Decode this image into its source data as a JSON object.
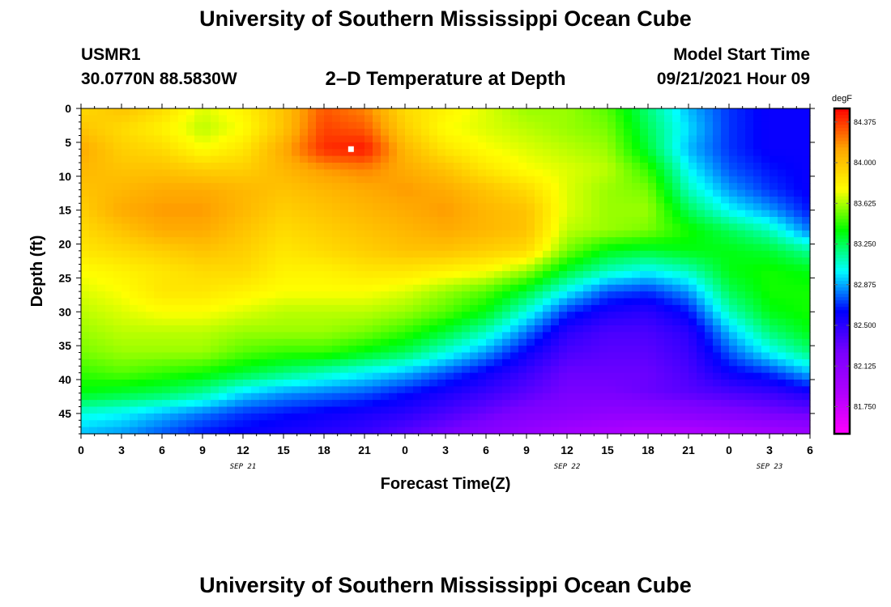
{
  "header": {
    "title": "University of Southern Mississippi Ocean Cube",
    "station": "USMR1",
    "coords": "30.0770N  88.5830W",
    "plot_title": "2–D Temperature at Depth",
    "model_start_label": "Model Start Time",
    "model_start_value": "09/21/2021 Hour 09"
  },
  "footer": {
    "title": "University of Southern Mississippi Ocean Cube"
  },
  "chart_data": {
    "type": "heatmap",
    "xlabel": "Forecast Time(Z)",
    "ylabel": "Depth (ft)",
    "x_ticks": [
      "0",
      "3",
      "6",
      "9",
      "12",
      "15",
      "18",
      "21",
      "0",
      "3",
      "6",
      "9",
      "12",
      "15",
      "18",
      "21",
      "0",
      "3",
      "6"
    ],
    "x_range_hours": [
      0,
      54
    ],
    "date_labels": [
      {
        "label": "SEP 21",
        "hour": 12
      },
      {
        "label": "SEP 22",
        "hour": 36
      },
      {
        "label": "SEP 23",
        "hour": 51
      }
    ],
    "y_ticks": [
      0,
      5,
      10,
      15,
      20,
      25,
      30,
      35,
      40,
      45
    ],
    "ylim": [
      0,
      48
    ],
    "y_reversed": true,
    "colorbar": {
      "unit": "degF",
      "min": 81.5,
      "max": 84.5,
      "labels": [
        "84.375",
        "84.000",
        "83.625",
        "83.250",
        "82.875",
        "82.500",
        "82.125",
        "81.750"
      ],
      "colors": [
        "#ff00ff",
        "#b000ff",
        "#7a00ff",
        "#0000ff",
        "#00ffff",
        "#00ff00",
        "#ffff00",
        "#ffa500",
        "#ff0000"
      ]
    },
    "marker": {
      "hour": 20,
      "depth": 6,
      "color": "#ffffff"
    },
    "grid": false,
    "values_hours": [
      0,
      3,
      6,
      9,
      12,
      15,
      18,
      21,
      24,
      27,
      30,
      33,
      36,
      39,
      42,
      45,
      48,
      51,
      54
    ],
    "values_depths": [
      0,
      3,
      6,
      9,
      12,
      15,
      18,
      21,
      24,
      27,
      30,
      33,
      36,
      39,
      42,
      45,
      48
    ],
    "values": [
      [
        83.9,
        84.0,
        83.9,
        83.7,
        83.8,
        84.0,
        84.3,
        84.2,
        83.9,
        83.8,
        83.7,
        83.6,
        83.6,
        83.5,
        83.2,
        82.9,
        82.7,
        82.6,
        82.6
      ],
      [
        84.0,
        83.9,
        83.8,
        83.65,
        83.75,
        84.0,
        84.35,
        84.3,
        83.95,
        83.75,
        83.7,
        83.65,
        83.6,
        83.55,
        83.25,
        82.95,
        82.7,
        82.6,
        82.6
      ],
      [
        84.1,
        83.95,
        83.9,
        83.75,
        83.85,
        84.1,
        84.4,
        84.45,
        84.05,
        83.85,
        83.75,
        83.7,
        83.65,
        83.6,
        83.3,
        82.9,
        82.7,
        82.6,
        82.6
      ],
      [
        84.05,
        84.0,
        84.0,
        83.95,
        83.95,
        84.05,
        84.15,
        84.2,
        84.1,
        84.0,
        83.85,
        83.75,
        83.7,
        83.65,
        83.45,
        83.0,
        82.75,
        82.65,
        82.6
      ],
      [
        84.0,
        84.05,
        84.1,
        84.1,
        84.05,
        84.0,
        84.05,
        84.1,
        84.15,
        84.1,
        84.0,
        83.9,
        83.7,
        83.6,
        83.55,
        83.1,
        82.85,
        82.7,
        82.6
      ],
      [
        83.95,
        84.1,
        84.15,
        84.15,
        84.05,
        83.95,
        84.0,
        84.05,
        84.1,
        84.15,
        84.05,
        84.0,
        83.7,
        83.6,
        83.6,
        83.25,
        83.0,
        82.85,
        82.65
      ],
      [
        83.9,
        84.0,
        84.1,
        84.1,
        84.0,
        83.9,
        83.95,
        84.0,
        84.05,
        84.1,
        84.05,
        84.0,
        83.65,
        83.6,
        83.55,
        83.4,
        83.25,
        83.1,
        82.8
      ],
      [
        83.85,
        83.9,
        83.95,
        84.0,
        83.95,
        83.85,
        83.9,
        83.95,
        84.0,
        84.0,
        83.95,
        83.9,
        83.55,
        83.35,
        83.3,
        83.35,
        83.35,
        83.3,
        83.15
      ],
      [
        83.75,
        83.8,
        83.85,
        83.9,
        83.9,
        83.8,
        83.8,
        83.85,
        83.85,
        83.8,
        83.75,
        83.6,
        83.3,
        83.1,
        83.0,
        83.1,
        83.35,
        83.4,
        83.35
      ],
      [
        83.7,
        83.75,
        83.85,
        83.85,
        83.8,
        83.75,
        83.75,
        83.75,
        83.7,
        83.6,
        83.5,
        83.3,
        83.0,
        82.75,
        82.7,
        82.85,
        83.25,
        83.4,
        83.4
      ],
      [
        83.65,
        83.7,
        83.75,
        83.75,
        83.7,
        83.65,
        83.65,
        83.65,
        83.6,
        83.5,
        83.35,
        83.05,
        82.7,
        82.55,
        82.5,
        82.65,
        83.1,
        83.35,
        83.4
      ],
      [
        83.6,
        83.65,
        83.65,
        83.65,
        83.6,
        83.6,
        83.6,
        83.55,
        83.45,
        83.3,
        83.1,
        82.8,
        82.5,
        82.4,
        82.4,
        82.5,
        82.9,
        83.2,
        83.35
      ],
      [
        83.55,
        83.6,
        83.6,
        83.6,
        83.5,
        83.45,
        83.45,
        83.35,
        83.25,
        83.05,
        82.85,
        82.6,
        82.4,
        82.35,
        82.35,
        82.45,
        82.75,
        83.0,
        83.2
      ],
      [
        83.45,
        83.5,
        83.45,
        83.4,
        83.3,
        83.2,
        83.1,
        83.0,
        82.9,
        82.75,
        82.6,
        82.45,
        82.3,
        82.3,
        82.3,
        82.4,
        82.6,
        82.7,
        82.9
      ],
      [
        83.35,
        83.3,
        83.25,
        83.15,
        82.95,
        82.85,
        82.8,
        82.75,
        82.65,
        82.55,
        82.45,
        82.35,
        82.25,
        82.25,
        82.3,
        82.35,
        82.4,
        82.45,
        82.55
      ],
      [
        83.05,
        83.0,
        82.9,
        82.8,
        82.7,
        82.65,
        82.6,
        82.55,
        82.5,
        82.4,
        82.3,
        82.2,
        82.15,
        82.1,
        82.1,
        82.15,
        82.2,
        82.25,
        82.3
      ],
      [
        82.9,
        82.85,
        82.75,
        82.65,
        82.6,
        82.55,
        82.5,
        82.45,
        82.35,
        82.25,
        82.15,
        82.05,
        81.95,
        81.9,
        81.85,
        81.85,
        81.9,
        81.95,
        82.0
      ]
    ]
  }
}
